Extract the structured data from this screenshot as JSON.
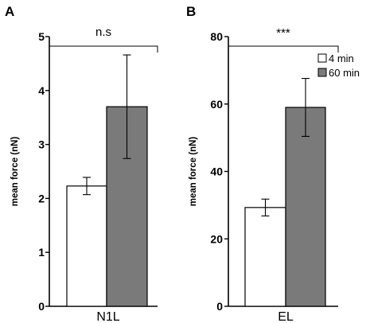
{
  "chart_data": [
    {
      "panel_label": "A",
      "type": "bar",
      "category": "N1L",
      "ylabel": "mean force (nN)",
      "ylim": [
        0,
        5
      ],
      "yticks": [
        "0",
        "1",
        "2",
        "3",
        "4",
        "5"
      ],
      "series": [
        {
          "name": "4 min",
          "value": 2.23,
          "error": 0.16,
          "color": "#ffffff"
        },
        {
          "name": "60 min",
          "value": 3.7,
          "error": 0.96,
          "color": "#7a7a7a"
        }
      ],
      "significance": "n.s",
      "legend": false
    },
    {
      "panel_label": "B",
      "type": "bar",
      "category": "EL",
      "ylabel": "mean force (nN)",
      "ylim": [
        0,
        80
      ],
      "yticks": [
        "0",
        "20",
        "40",
        "60",
        "80"
      ],
      "series": [
        {
          "name": "4 min",
          "value": 29.3,
          "error": 2.5,
          "color": "#ffffff"
        },
        {
          "name": "60 min",
          "value": 59.0,
          "error": 8.6,
          "color": "#7a7a7a"
        }
      ],
      "significance": "***",
      "legend": true,
      "legend_placement": "top-right"
    }
  ]
}
